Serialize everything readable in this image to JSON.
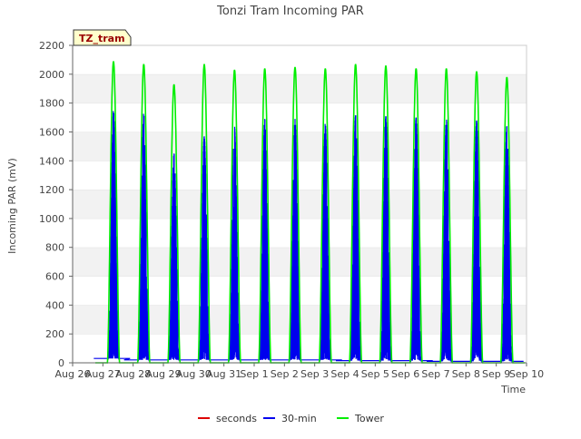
{
  "chart_data": {
    "type": "line",
    "title": "Tonzi Tram Incoming PAR",
    "xlabel": "Time",
    "ylabel": "Incoming PAR (mV)",
    "site_tag": "TZ_tram",
    "ylim": [
      0,
      2200
    ],
    "yticks": [
      0,
      200,
      400,
      600,
      800,
      1000,
      1200,
      1400,
      1600,
      1800,
      2000,
      2200
    ],
    "xlim": [
      0,
      15
    ],
    "x_tick_labels": [
      "Aug 26",
      "Aug 27",
      "Aug 28",
      "Aug 29",
      "Aug 30",
      "Aug 31",
      "Sep 1",
      "Sep 2",
      "Sep 3",
      "Sep 4",
      "Sep 5",
      "Sep 6",
      "Sep 7",
      "Sep 8",
      "Sep 9",
      "Sep 10"
    ],
    "grid": "horizontal bands",
    "legend_position": "bottom-center",
    "series": [
      {
        "name": "seconds",
        "color": "#dd0000",
        "values": []
      },
      {
        "name": "30-min",
        "color": "#0000ee",
        "x": [
          "Aug 27",
          "Aug 28",
          "Aug 29",
          "Aug 30",
          "Aug 31",
          "Sep 1",
          "Sep 2",
          "Sep 3",
          "Sep 4",
          "Sep 5",
          "Sep 6",
          "Sep 7",
          "Sep 8",
          "Sep 9"
        ],
        "daily_peak": [
          1750,
          1730,
          1450,
          1570,
          1640,
          1690,
          1690,
          1660,
          1720,
          1710,
          1700,
          1690,
          1680,
          1640
        ],
        "night_level": [
          30,
          20,
          20,
          20,
          20,
          20,
          20,
          20,
          15,
          15,
          15,
          10,
          10,
          10
        ]
      },
      {
        "name": "Tower",
        "color": "#00ee00",
        "x": [
          "Aug 27",
          "Aug 28",
          "Aug 29",
          "Aug 30",
          "Aug 31",
          "Sep 1",
          "Sep 2",
          "Sep 3",
          "Sep 4",
          "Sep 5",
          "Sep 6",
          "Sep 7",
          "Sep 8",
          "Sep 9"
        ],
        "daily_peak": [
          2090,
          2070,
          1930,
          2070,
          2030,
          2040,
          2050,
          2040,
          2070,
          2060,
          2040,
          2040,
          2020,
          1980
        ]
      }
    ]
  }
}
